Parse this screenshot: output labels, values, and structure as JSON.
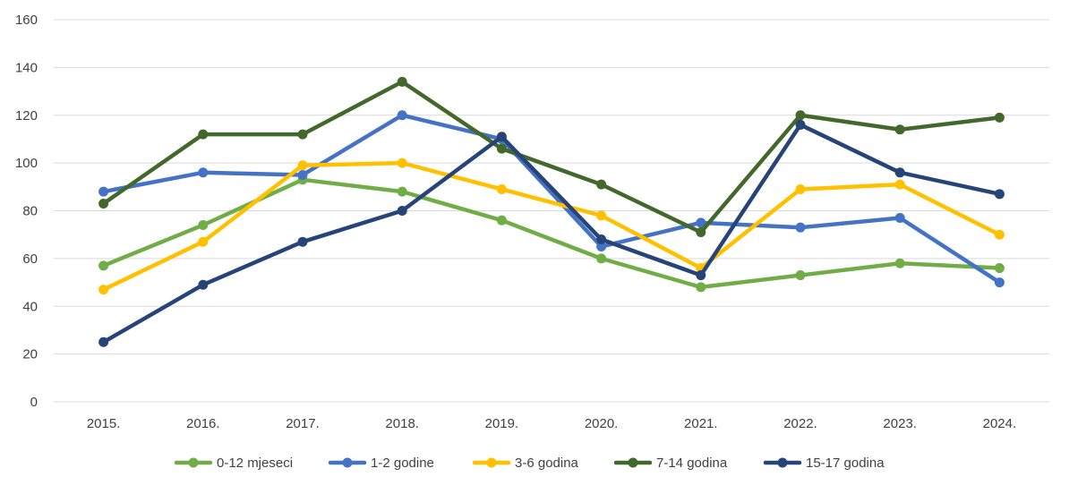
{
  "chart_data": {
    "type": "line",
    "title": "",
    "xlabel": "",
    "ylabel": "",
    "categories": [
      "2015.",
      "2016.",
      "2017.",
      "2018.",
      "2019.",
      "2020.",
      "2021.",
      "2022.",
      "2023.",
      "2024."
    ],
    "ylim": [
      0,
      160
    ],
    "yticks": [
      "0",
      "20",
      "40",
      "60",
      "80",
      "100",
      "120",
      "140",
      "160"
    ],
    "grid": true,
    "legend_position": "bottom",
    "series": [
      {
        "name": "0-12 mjeseci",
        "color": "#70ad47",
        "values": [
          57,
          74,
          93,
          88,
          76,
          60,
          48,
          53,
          58,
          56
        ]
      },
      {
        "name": "1-2 godine",
        "color": "#4472c4",
        "values": [
          88,
          96,
          95,
          120,
          110,
          65,
          75,
          73,
          77,
          50
        ]
      },
      {
        "name": "3-6 godina",
        "color": "#ffc000",
        "values": [
          47,
          67,
          99,
          100,
          89,
          78,
          56,
          89,
          91,
          70
        ]
      },
      {
        "name": "7-14 godina",
        "color": "#43682b",
        "values": [
          83,
          112,
          112,
          134,
          106,
          91,
          71,
          120,
          114,
          119
        ]
      },
      {
        "name": "15-17 godina",
        "color": "#264478",
        "values": [
          25,
          49,
          67,
          80,
          111,
          68,
          53,
          116,
          96,
          87
        ]
      }
    ]
  }
}
